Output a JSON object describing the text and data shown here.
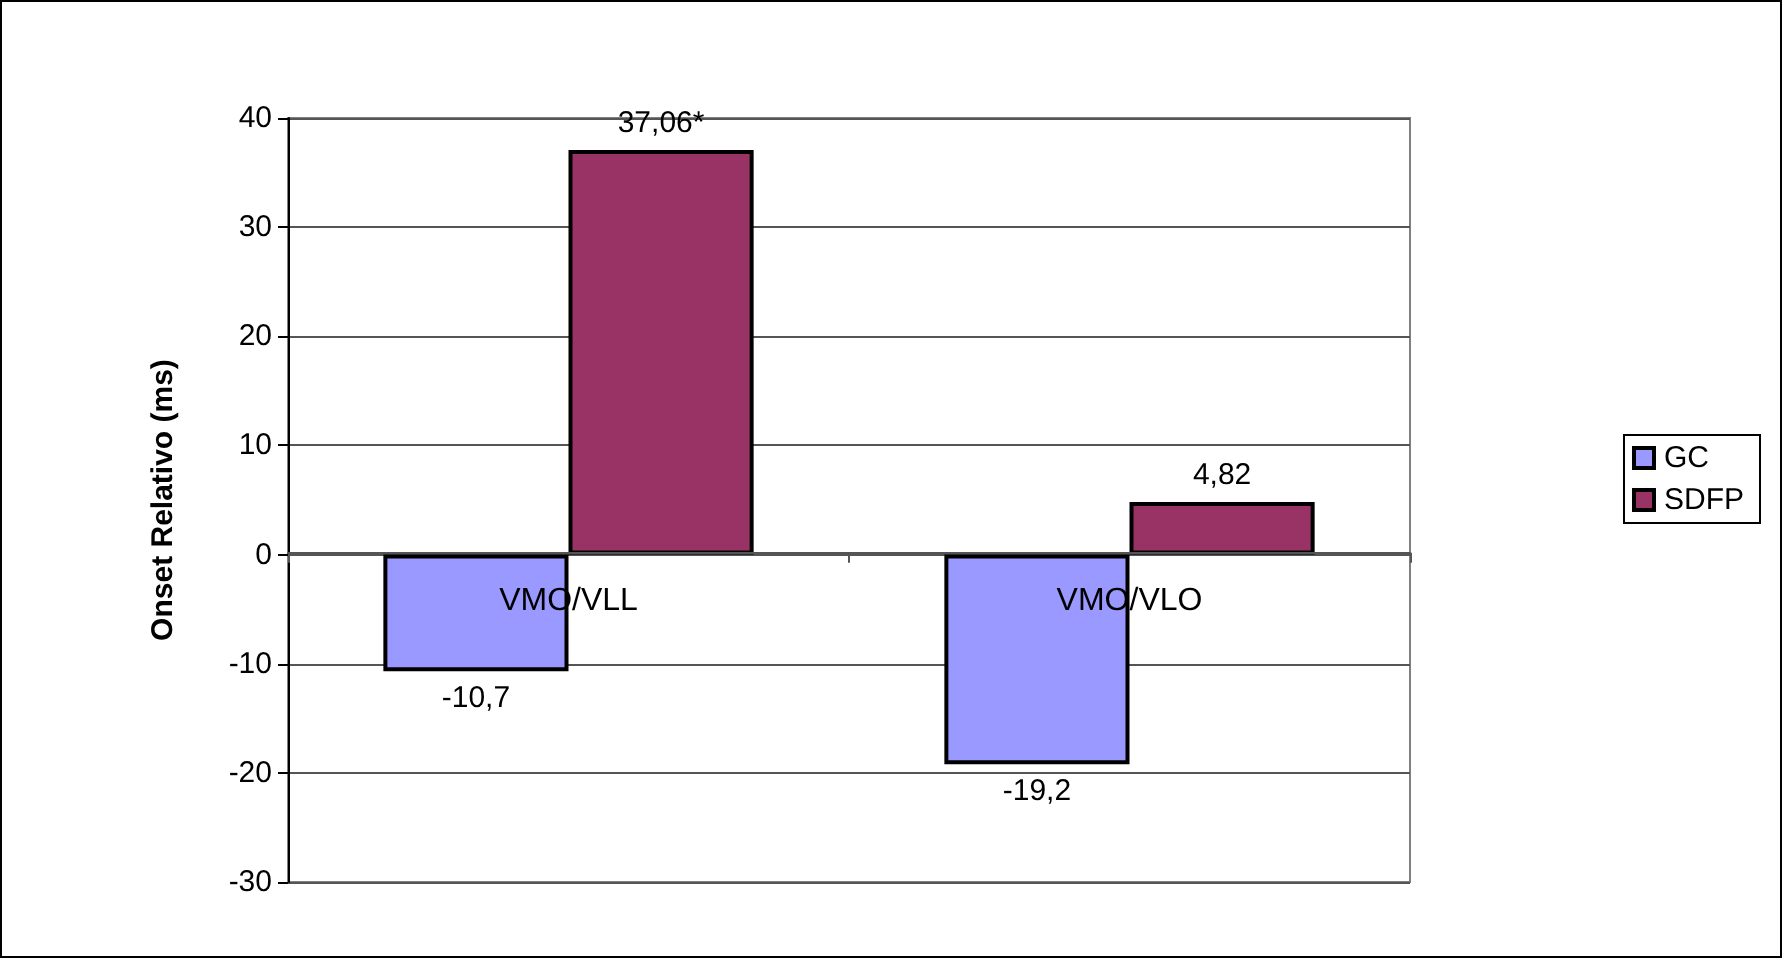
{
  "chart_data": {
    "type": "bar",
    "ylabel": "Onset Relativo (ms)",
    "categories": [
      "VMO/VLL",
      "VMO/VLO"
    ],
    "series": [
      {
        "name": "GC",
        "color": "#9999ff",
        "values": [
          -10.7,
          -19.2
        ],
        "value_labels": [
          "-10,7",
          "-19,2"
        ]
      },
      {
        "name": "SDFP",
        "color": "#993366",
        "values": [
          37.06,
          4.82
        ],
        "value_labels": [
          "37,06*",
          "4,82"
        ]
      }
    ],
    "ylim": [
      -30,
      40
    ],
    "yticks": [
      -30,
      -20,
      -10,
      0,
      10,
      20,
      30,
      40
    ],
    "grid": true,
    "legend": "right"
  }
}
